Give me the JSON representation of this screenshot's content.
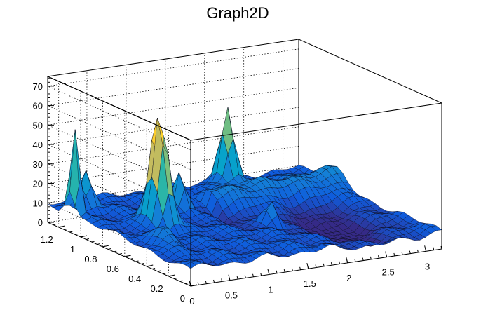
{
  "chart_data": {
    "type": "surface",
    "title": "Graph2D",
    "xlabel": "",
    "ylabel": "",
    "zlabel": "",
    "xlim": [
      0,
      3.2
    ],
    "ylim": [
      0,
      1.3
    ],
    "zlim": [
      0,
      75
    ],
    "x_ticks": [
      "0",
      "0.5",
      "1",
      "1.5",
      "2",
      "2.5",
      "3"
    ],
    "y_ticks": [
      "0",
      "0.2",
      "0.4",
      "0.6",
      "0.8",
      "1",
      "1.2"
    ],
    "z_ticks": [
      "0",
      "10",
      "20",
      "30",
      "40",
      "50",
      "60",
      "70"
    ],
    "grid": true,
    "colormap": [
      "#352a87",
      "#0f5cdd",
      "#1481d6",
      "#06a4ca",
      "#2eb7a4",
      "#87bf77",
      "#d1bb59",
      "#fec832",
      "#f9fb0e"
    ],
    "base_level": 9,
    "peaks": [
      {
        "x": 0.05,
        "y": 1.1,
        "height": 55,
        "sigma_x": 0.03,
        "sigma_y": 0.04
      },
      {
        "x": 0.35,
        "y": 1.2,
        "height": 18,
        "sigma_x": 0.06,
        "sigma_y": 0.05
      },
      {
        "x": 0.65,
        "y": 0.75,
        "height": 58,
        "sigma_x": 0.07,
        "sigma_y": 0.07
      },
      {
        "x": 1.2,
        "y": 0.95,
        "height": 22,
        "sigma_x": 0.05,
        "sigma_y": 0.05
      },
      {
        "x": 2.15,
        "y": 1.2,
        "height": 42,
        "sigma_x": 0.07,
        "sigma_y": 0.05
      },
      {
        "x": 1.8,
        "y": 0.55,
        "height": 12,
        "sigma_x": 0.06,
        "sigma_y": 0.05
      },
      {
        "x": 0.3,
        "y": 0.45,
        "height": 8,
        "sigma_x": 0.09,
        "sigma_y": 0.07
      }
    ],
    "valleys": [
      {
        "x": 2.45,
        "y": 0.45,
        "depth": 11,
        "sigma_x": 0.3,
        "sigma_y": 0.25
      },
      {
        "x": 1.6,
        "y": 0.75,
        "depth": 5,
        "sigma_x": 0.2,
        "sigma_y": 0.15
      }
    ],
    "ridges": [
      {
        "y": 0.95,
        "height": 8,
        "sigma_y": 0.1,
        "x_from": 1.6,
        "x_to": 3.2
      }
    ]
  }
}
